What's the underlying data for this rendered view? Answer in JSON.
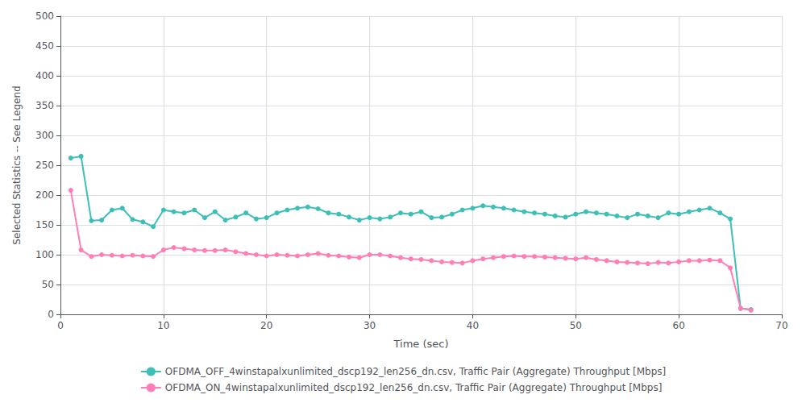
{
  "chart_data": {
    "type": "line",
    "xlabel": "Time (sec)",
    "ylabel": "Selected Statistics -- See Legend",
    "x": [
      1,
      2,
      3,
      4,
      5,
      6,
      7,
      8,
      9,
      10,
      11,
      12,
      13,
      14,
      15,
      16,
      17,
      18,
      19,
      20,
      21,
      22,
      23,
      24,
      25,
      26,
      27,
      28,
      29,
      30,
      31,
      32,
      33,
      34,
      35,
      36,
      37,
      38,
      39,
      40,
      41,
      42,
      43,
      44,
      45,
      46,
      47,
      48,
      49,
      50,
      51,
      52,
      53,
      54,
      55,
      56,
      57,
      58,
      59,
      60,
      61,
      62,
      63,
      64,
      65,
      66,
      67
    ],
    "series": [
      {
        "name": "OFDMA_OFF_4winstapalxunlimited_dscp192_len256_dn.csv, Traffic Pair (Aggregate) Throughput [Mbps]",
        "color": "#3dbfb8",
        "values": [
          262,
          265,
          157,
          158,
          175,
          178,
          159,
          155,
          147,
          175,
          172,
          170,
          175,
          162,
          172,
          158,
          163,
          170,
          160,
          162,
          170,
          175,
          178,
          180,
          177,
          170,
          168,
          163,
          158,
          162,
          160,
          163,
          170,
          168,
          172,
          162,
          163,
          168,
          175,
          178,
          182,
          180,
          178,
          175,
          172,
          170,
          168,
          165,
          163,
          168,
          172,
          170,
          168,
          165,
          162,
          168,
          165,
          162,
          170,
          168,
          172,
          175,
          178,
          170,
          160,
          10,
          8
        ]
      },
      {
        "name": "OFDMA_ON_4winstapalxunlimited_dscp192_len256_dn.csv, Traffic Pair (Aggregate) Throughput [Mbps]",
        "color": "#ff7eb6",
        "values": [
          208,
          108,
          97,
          100,
          99,
          98,
          99,
          98,
          97,
          108,
          112,
          110,
          108,
          107,
          107,
          108,
          105,
          102,
          100,
          98,
          100,
          99,
          98,
          100,
          102,
          99,
          98,
          96,
          95,
          100,
          100,
          98,
          95,
          93,
          92,
          90,
          88,
          87,
          86,
          90,
          93,
          95,
          97,
          98,
          97,
          97,
          96,
          95,
          94,
          93,
          95,
          92,
          90,
          88,
          87,
          86,
          85,
          87,
          86,
          88,
          90,
          90,
          91,
          90,
          78,
          10,
          7
        ]
      }
    ],
    "xlim": [
      0,
      70
    ],
    "ylim": [
      0,
      500
    ],
    "xticks": [
      0,
      10,
      20,
      30,
      40,
      50,
      60,
      70
    ],
    "yticks": [
      0,
      50,
      100,
      150,
      200,
      250,
      300,
      350,
      400,
      450,
      500
    ],
    "grid": true,
    "legend": "bottom",
    "marker": "circle"
  }
}
